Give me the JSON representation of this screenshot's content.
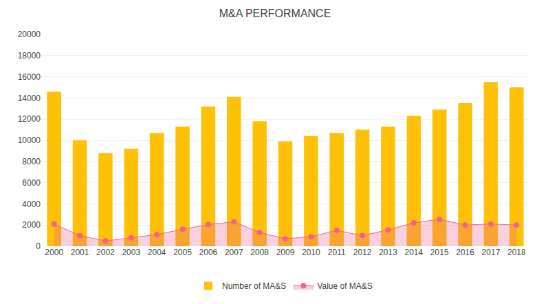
{
  "chart_data": {
    "type": "bar",
    "title": "M&A PERFORMANCE",
    "categories": [
      "2000",
      "2001",
      "2002",
      "2003",
      "2004",
      "2005",
      "2006",
      "2007",
      "2008",
      "2009",
      "2010",
      "2011",
      "2012",
      "2013",
      "2014",
      "2015",
      "2016",
      "2017",
      "2018"
    ],
    "series": [
      {
        "name": "Number of MA&S",
        "type": "bar",
        "color": "#FFC107",
        "values": [
          14600,
          10000,
          8800,
          9200,
          10700,
          11300,
          13200,
          14100,
          11800,
          9900,
          10400,
          10700,
          11000,
          11300,
          12300,
          12900,
          13500,
          15500,
          15000
        ]
      },
      {
        "name": "Value of MA&S",
        "type": "area",
        "color": "#F06292",
        "marker": "circle",
        "values": [
          2100,
          1000,
          500,
          800,
          1100,
          1600,
          2050,
          2300,
          1300,
          700,
          900,
          1500,
          1000,
          1550,
          2200,
          2550,
          2000,
          2100,
          2000
        ]
      }
    ],
    "ylim": [
      0,
      20000
    ],
    "yticks": [
      0,
      2000,
      4000,
      6000,
      8000,
      10000,
      12000,
      14000,
      16000,
      18000,
      20000
    ],
    "grid": true,
    "legend": "bottom"
  }
}
